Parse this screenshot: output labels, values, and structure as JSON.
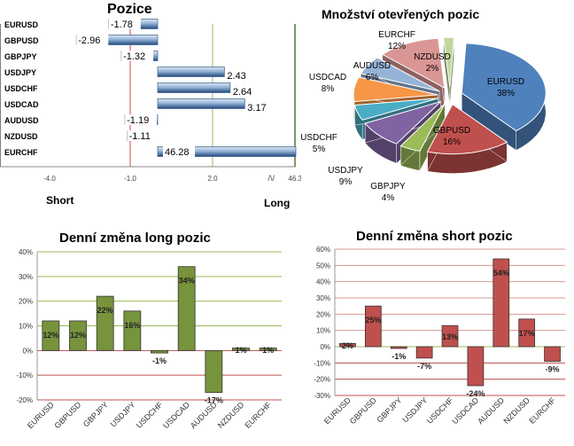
{
  "chart_data": [
    {
      "type": "bar",
      "orientation": "horizontal",
      "title": "Pozice",
      "categories": [
        "EURUSD",
        "GBPUSD",
        "GBPJPY",
        "USDJPY",
        "USDCHF",
        "USDCAD",
        "AUDUSD",
        "NZDUSD",
        "EURCHF"
      ],
      "values": [
        -1.78,
        -2.96,
        -1.32,
        2.43,
        2.64,
        3.17,
        -1.19,
        -1.11,
        46.28
      ],
      "value_labels": [
        "-1.78",
        "-2.96",
        "-1.32",
        "2.43",
        "2.64",
        "3.17",
        "-1.19",
        "-1.11",
        "46.28"
      ],
      "x_ticks": [
        "-4.0",
        "-1.0",
        "2.0",
        "46.3"
      ],
      "axis_break": "/\\/",
      "short_label": "Short",
      "long_label": "Long",
      "color": "#4f81bd"
    },
    {
      "type": "pie",
      "title": "Množství otevřených pozic",
      "labels": [
        "EURUSD",
        "GBPUSD",
        "GBPJPY",
        "USDJPY",
        "USDCHF",
        "USDCAD",
        "AUDUSD",
        "EURCHF",
        "NZDUSD"
      ],
      "values": [
        38,
        16,
        4,
        9,
        5,
        8,
        6,
        12,
        2
      ],
      "pct_labels": [
        "38%",
        "16%",
        "4%",
        "9%",
        "5%",
        "8%",
        "6%",
        "12%",
        "2%"
      ],
      "colors": [
        "#4f81bd",
        "#c0504d",
        "#9bbb59",
        "#8064a2",
        "#4bacc6",
        "#f79646",
        "#95b3d7",
        "#d99694",
        "#c3d69b"
      ]
    },
    {
      "type": "bar",
      "title": "Denní změna long pozic",
      "categories": [
        "EURUSD",
        "GBPUSD",
        "GBPJPY",
        "USDJPY",
        "USDCHF",
        "USDCAD",
        "AUDUSD",
        "NZDUSD",
        "EURCHF"
      ],
      "values": [
        12,
        12,
        22,
        16,
        -1,
        34,
        -17,
        1,
        1
      ],
      "value_labels": [
        "12%",
        "12%",
        "22%",
        "16%",
        "-1%",
        "34%",
        "-17%",
        "1%",
        "1%"
      ],
      "y_ticks": [
        "40%",
        "30%",
        "20%",
        "10%",
        "0%",
        "-10%",
        "-20%"
      ],
      "ylim": [
        -20,
        40
      ],
      "color": "#77933c",
      "grid_color": "#9bbb59",
      "zero_line_color": "#c0504d"
    },
    {
      "type": "bar",
      "title": "Denní změna short pozic",
      "categories": [
        "EURUSD",
        "GBPUSD",
        "GBPJPY",
        "USDJPY",
        "USDCHF",
        "USDCAD",
        "AUDUSD",
        "NZDUSD",
        "EURCHF"
      ],
      "values": [
        2,
        25,
        -1,
        -7,
        13,
        -24,
        54,
        17,
        -9
      ],
      "value_labels": [
        "2%",
        "25%",
        "-1%",
        "-7%",
        "13%",
        "-24%",
        "54%",
        "17%",
        "-9%"
      ],
      "y_ticks": [
        "60%",
        "50%",
        "40%",
        "30%",
        "20%",
        "10%",
        "0%",
        "-10%",
        "-20%",
        "-30%"
      ],
      "ylim": [
        -30,
        60
      ],
      "color": "#c0504d",
      "grid_color": "#d99694",
      "zero_line_color": "#9bbb59"
    }
  ]
}
